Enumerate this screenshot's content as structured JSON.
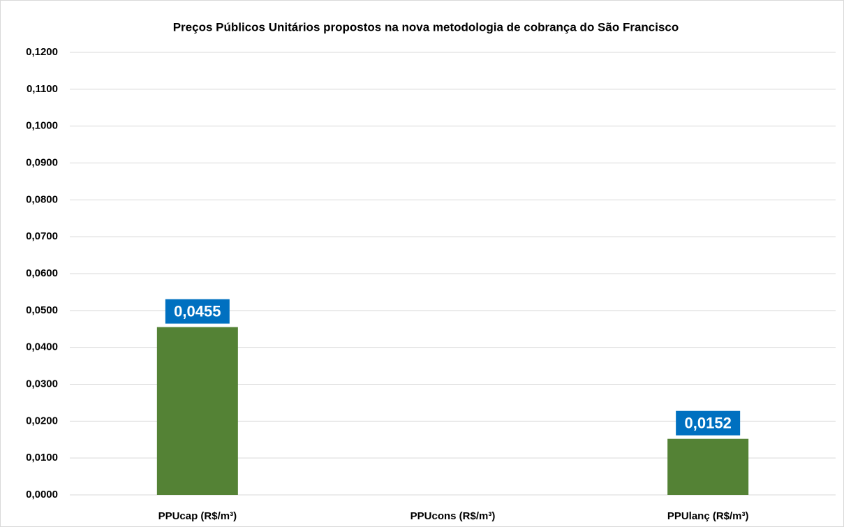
{
  "chart_data": {
    "type": "bar",
    "title": "Preços Públicos Unitários propostos na nova metodologia de cobrança do São Francisco",
    "categories": [
      "PPUcap (R$/m³)",
      "PPUcons (R$/m³)",
      "PPUlanç (R$/m³)"
    ],
    "values": [
      0.0455,
      null,
      0.0152
    ],
    "value_labels": [
      "0,0455",
      null,
      "0,0152"
    ],
    "color": "#548235",
    "label_color": "#0070c0",
    "ylim": [
      0,
      0.12
    ],
    "yticks": [
      {
        "value": 0,
        "label": "0,0000"
      },
      {
        "value": 0.01,
        "label": "0,0100"
      },
      {
        "value": 0.02,
        "label": "0,0200"
      },
      {
        "value": 0.03,
        "label": "0,0300"
      },
      {
        "value": 0.04,
        "label": "0,0400"
      },
      {
        "value": 0.05,
        "label": "0,0500"
      },
      {
        "value": 0.06,
        "label": "0,0600"
      },
      {
        "value": 0.07,
        "label": "0,0700"
      },
      {
        "value": 0.08,
        "label": "0,0800"
      },
      {
        "value": 0.09,
        "label": "0,0900"
      },
      {
        "value": 0.1,
        "label": "0,1000"
      },
      {
        "value": 0.11,
        "label": "0,1100"
      },
      {
        "value": 0.12,
        "label": "0,1200"
      }
    ],
    "grid": true
  }
}
